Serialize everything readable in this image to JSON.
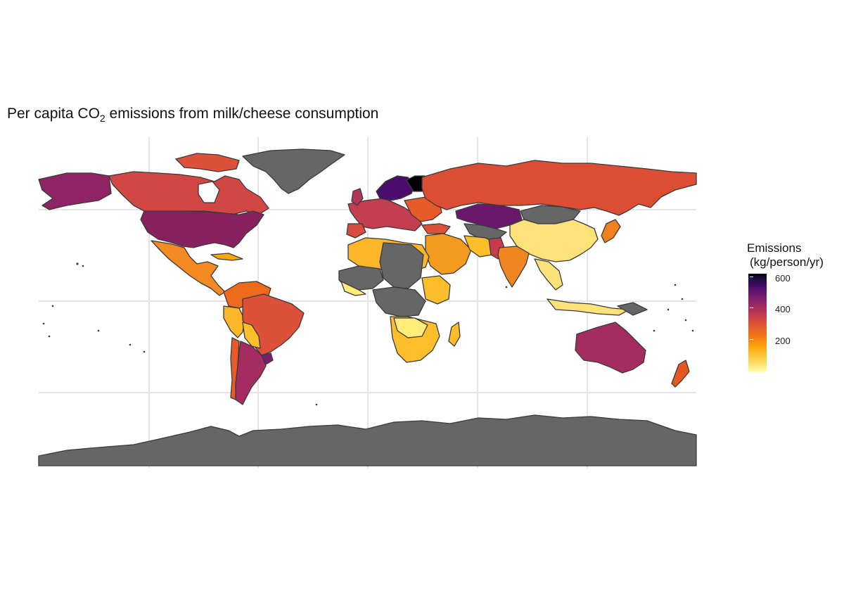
{
  "title": {
    "prefix": "Per capita",
    "molecule": "CO",
    "subscript": "2",
    "suffix": "emissions from milk/cheese consumption"
  },
  "legend": {
    "title_line1": "Emissions",
    "title_line2": "(kg/person/yr)",
    "ticks": [
      "200",
      "400",
      "600"
    ],
    "palette": "inferno",
    "range": [
      0,
      640
    ]
  },
  "colors": {
    "no_data": "#666666",
    "border": "#3a3a3a",
    "grid": "#e4e4e4"
  },
  "regions": [
    {
      "name": "United States",
      "level": "high"
    },
    {
      "name": "Canada",
      "level": "mid-high"
    },
    {
      "name": "Alaska",
      "level": "high"
    },
    {
      "name": "Greenland",
      "level": "no-data"
    },
    {
      "name": "Mexico",
      "level": "mid"
    },
    {
      "name": "Brazil",
      "level": "mid-high"
    },
    {
      "name": "Argentina",
      "level": "high"
    },
    {
      "name": "Russia",
      "level": "mid-high"
    },
    {
      "name": "Kazakhstan",
      "level": "very-high"
    },
    {
      "name": "Finland",
      "level": "max"
    },
    {
      "name": "Sweden",
      "level": "very-high"
    },
    {
      "name": "China",
      "level": "low"
    },
    {
      "name": "India",
      "level": "mid"
    },
    {
      "name": "Australia",
      "level": "high"
    },
    {
      "name": "New Zealand",
      "level": "mid-high"
    },
    {
      "name": "Antarctica",
      "level": "no-data"
    }
  ]
}
